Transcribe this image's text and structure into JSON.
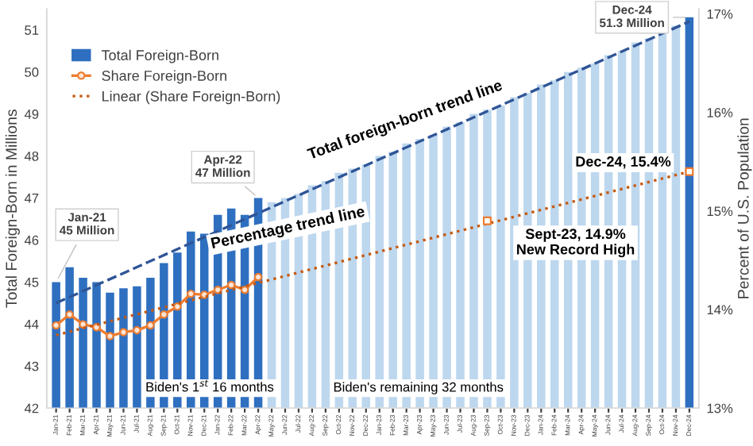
{
  "chart_data": {
    "type": "bar",
    "categories": [
      "Jan-21",
      "Feb-21",
      "Mar-21",
      "Apr-21",
      "May-21",
      "Jun-21",
      "Jul-21",
      "Aug-21",
      "Sep-21",
      "Oct-21",
      "Nov-21",
      "Dec-21",
      "Jan-22",
      "Feb-22",
      "Mar-22",
      "Apr-22",
      "May-22",
      "Jun-22",
      "Jul-22",
      "Aug-22",
      "Sep-22",
      "Oct-22",
      "Nov-22",
      "Dec-22",
      "Jan-23",
      "Feb-23",
      "Mar-23",
      "Apr-23",
      "May-23",
      "Jun-23",
      "Jul-23",
      "Aug-23",
      "Sep-23",
      "Oct-23",
      "Nov-23",
      "Dec-23",
      "Jan-24",
      "Feb-24",
      "Mar-24",
      "Apr-24",
      "May-24",
      "Jun-24",
      "Jul-24",
      "Aug-24",
      "Sep-24",
      "Oct-24",
      "Nov-24",
      "Dec-24"
    ],
    "series": [
      {
        "name": "Total Foreign-Born",
        "color": "#2e6fc0",
        "colors": [
          "#2e6fc0",
          "#2e6fc0",
          "#2e6fc0",
          "#2e6fc0",
          "#2e6fc0",
          "#2e6fc0",
          "#2e6fc0",
          "#2e6fc0",
          "#2e6fc0",
          "#2e6fc0",
          "#2e6fc0",
          "#2e6fc0",
          "#2e6fc0",
          "#2e6fc0",
          "#2e6fc0",
          "#2e6fc0",
          "#bdd7ee",
          "#bdd7ee",
          "#bdd7ee",
          "#bdd7ee",
          "#bdd7ee",
          "#bdd7ee",
          "#bdd7ee",
          "#bdd7ee",
          "#bdd7ee",
          "#bdd7ee",
          "#bdd7ee",
          "#bdd7ee",
          "#bdd7ee",
          "#bdd7ee",
          "#bdd7ee",
          "#bdd7ee",
          "#bdd7ee",
          "#bdd7ee",
          "#bdd7ee",
          "#bdd7ee",
          "#bdd7ee",
          "#bdd7ee",
          "#bdd7ee",
          "#bdd7ee",
          "#bdd7ee",
          "#bdd7ee",
          "#bdd7ee",
          "#bdd7ee",
          "#bdd7ee",
          "#bdd7ee",
          "#bdd7ee",
          "#2e6fc0"
        ],
        "values": [
          45.0,
          45.35,
          45.1,
          45.0,
          44.75,
          44.85,
          44.9,
          45.1,
          45.45,
          45.7,
          46.2,
          46.15,
          46.6,
          46.75,
          46.6,
          47.0,
          46.9,
          47.0,
          47.1,
          47.3,
          47.4,
          47.6,
          47.7,
          47.8,
          48.0,
          48.1,
          48.3,
          48.4,
          48.5,
          48.7,
          48.8,
          49.0,
          49.1,
          49.2,
          49.4,
          49.5,
          49.7,
          49.8,
          50.0,
          50.1,
          50.2,
          50.4,
          50.5,
          50.7,
          50.8,
          50.9,
          51.1,
          51.3
        ],
        "value_labels": [
          "Jan-21\n45 Million",
          null,
          null,
          null,
          null,
          null,
          null,
          null,
          null,
          null,
          null,
          null,
          null,
          null,
          null,
          "Apr-22\n47 Million",
          null,
          null,
          null,
          null,
          null,
          null,
          null,
          null,
          null,
          null,
          null,
          null,
          null,
          null,
          null,
          null,
          null,
          null,
          null,
          null,
          null,
          null,
          null,
          null,
          null,
          null,
          null,
          null,
          null,
          null,
          null,
          "Dec-24\n51.3 Million"
        ]
      },
      {
        "type": "line",
        "color": "#2f5597",
        "line_style": "dashed",
        "x": [
          "Jan-21",
          "Dec-24"
        ],
        "values": [
          44.5,
          51.2
        ]
      },
      {
        "name": "Share Foreign-Born",
        "type": "line",
        "axis": "y2",
        "color": "#ed7d31",
        "marker": "circle",
        "x": [
          "Jan-21",
          "Feb-21",
          "Mar-21",
          "Apr-21",
          "May-21",
          "Jun-21",
          "Jul-21",
          "Aug-21",
          "Sep-21",
          "Oct-21",
          "Nov-21",
          "Dec-21",
          "Jan-22",
          "Feb-22",
          "Mar-22",
          "Apr-22"
        ],
        "values": [
          13.84,
          13.95,
          13.85,
          13.82,
          13.73,
          13.77,
          13.79,
          13.84,
          13.95,
          14.03,
          14.16,
          14.15,
          14.2,
          14.25,
          14.2,
          14.33
        ]
      },
      {
        "name": "Linear (Share Foreign-Born)",
        "type": "line",
        "axis": "y2",
        "color": "#c55a11",
        "line_style": "dotted",
        "x": [
          "Jan-21",
          "Dec-24"
        ],
        "values": [
          13.74,
          15.4
        ]
      },
      {
        "type": "scatter",
        "axis": "y2",
        "color": "#ed7d31",
        "marker": "square",
        "x": [
          "Sep-23",
          "Dec-24"
        ],
        "values": [
          14.9,
          15.4
        ],
        "value_labels": [
          "Sept-23, 14.9%\nNew Record High",
          "Dec-24, 15.4%"
        ]
      }
    ],
    "ylabel": "Total Foreign-Born in Millions",
    "y2label": "Percent of U.S. Population",
    "ylim": [
      42,
      51.5
    ],
    "yticks": [
      42,
      43,
      44,
      45,
      46,
      47,
      48,
      49,
      50,
      51
    ],
    "y2lim": [
      13,
      17.05
    ],
    "y2ticks": [
      {
        "value": 13,
        "label": "13%"
      },
      {
        "value": 14,
        "label": "14%"
      },
      {
        "value": 15,
        "label": "15%"
      },
      {
        "value": 16,
        "label": "16%"
      },
      {
        "value": 17,
        "label": "17%"
      }
    ],
    "annotations": [
      "Total foreign-born trend line",
      "Percentage trend line",
      "Biden's 1$^{st}$ 16 months",
      "Biden's remaining 32 months"
    ],
    "legend": "top left",
    "grid": false
  }
}
